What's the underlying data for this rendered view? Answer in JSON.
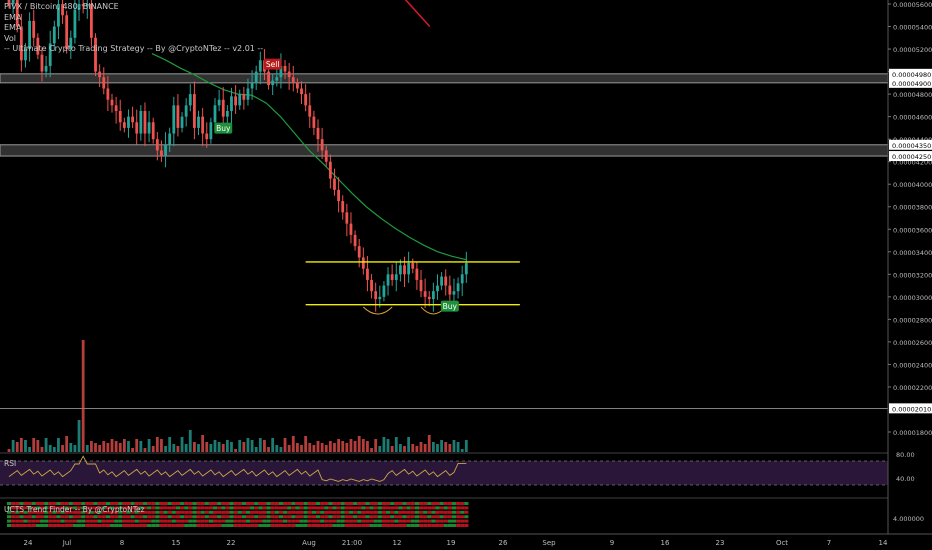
{
  "legend": {
    "symbol": "PIVX / Bitcoin, 480, BINANCE",
    "line2": "EMA",
    "line3": "EMA",
    "line4": "Vol",
    "line5": "-- Ultimate Crypto Trading Strategy -- By @CryptoNTez -- v2.01 --"
  },
  "rsi_label": "RSI",
  "ucts_label": "UCTS Trend Finder -- By @CryptoNTez",
  "colors": {
    "up": "#26a69a",
    "down": "#ef5350",
    "ema_green": "#1e9b3c",
    "ema_red": "#d0182e",
    "level_line": "#f2f000",
    "rsi_line": "#c9a64a",
    "rsi_band": "#2a1638",
    "zone": "#3a3a3a",
    "buy_bg": "#1f8f3a",
    "sell_bg": "#b71c1c"
  },
  "chart_data": {
    "type": "candlestick",
    "x_ticks": [
      "24",
      "Jul",
      "8",
      "15",
      "22",
      "Aug",
      "21:00",
      "12",
      "19",
      "26",
      "Sep",
      "9",
      "16",
      "23",
      "Oct",
      "7",
      "14"
    ],
    "price_axis_ticks": [
      "0.00005600",
      "0.00005400",
      "0.00005200",
      "0.00005000",
      "0.00004800",
      "0.00004600",
      "0.00004400",
      "0.00004200",
      "0.00004000",
      "0.00003800",
      "0.00003600",
      "0.00003400",
      "0.00003200",
      "0.00003000",
      "0.00002800",
      "0.00002600",
      "0.00002400",
      "0.00002200",
      "0.00001800"
    ],
    "ylim": [
      1.73e-05,
      5.66e-05
    ],
    "price_labels": [
      "0.00004980",
      "0.00004900",
      "0.00004350",
      "0.00004250",
      "0.00002010"
    ],
    "zones": [
      [
        4.9e-05,
        4.98e-05
      ],
      [
        4.25e-05,
        4.35e-05
      ]
    ],
    "levels": [
      3.31e-05,
      2.93e-05
    ],
    "last_level": 2.01e-05,
    "closes": [
      5.6,
      5.66,
      5.4,
      5.1,
      5.2,
      5.45,
      5.3,
      5.15,
      5.0,
      5.05,
      5.25,
      5.4,
      5.6,
      5.5,
      5.2,
      5.3,
      5.55,
      5.6,
      5.58,
      5.6,
      5.3,
      5.0,
      4.95,
      4.85,
      4.75,
      4.7,
      4.65,
      4.55,
      4.5,
      4.6,
      4.55,
      4.45,
      4.65,
      4.45,
      4.55,
      4.4,
      4.3,
      4.25,
      4.35,
      4.45,
      4.7,
      4.5,
      4.6,
      4.7,
      4.8,
      4.5,
      4.6,
      4.45,
      4.4,
      4.55,
      4.7,
      4.75,
      4.6,
      4.65,
      4.78,
      4.7,
      4.8,
      4.75,
      4.85,
      4.9,
      5.0,
      5.1,
      5.0,
      4.88,
      4.92,
      4.95,
      5.05,
      5.0,
      4.95,
      4.9,
      4.85,
      4.8,
      4.7,
      4.6,
      4.5,
      4.4,
      4.3,
      4.2,
      4.05,
      3.95,
      3.85,
      3.75,
      3.65,
      3.55,
      3.45,
      3.35,
      3.25,
      3.15,
      3.05,
      2.98,
      3.0,
      3.1,
      3.2,
      3.15,
      3.2,
      3.28,
      3.2,
      3.3,
      3.25,
      3.15,
      3.05,
      3.0,
      2.98,
      3.05,
      3.1,
      3.18,
      3.1,
      3.02,
      3.05,
      3.12,
      3.2,
      3.3
    ],
    "ema_green": [
      [
        0.5,
        5.16
      ],
      [
        0.55,
        5.1
      ],
      [
        0.6,
        5.03
      ],
      [
        0.65,
        4.97
      ],
      [
        0.7,
        4.9
      ],
      [
        0.75,
        4.84
      ],
      [
        0.8,
        4.8
      ],
      [
        0.85,
        4.79
      ],
      [
        0.9,
        4.72
      ],
      [
        0.95,
        4.6
      ],
      [
        1.0,
        4.45
      ],
      [
        1.05,
        4.3
      ],
      [
        1.1,
        4.18
      ],
      [
        1.15,
        4.05
      ],
      [
        1.2,
        3.92
      ],
      [
        1.25,
        3.8
      ],
      [
        1.3,
        3.7
      ],
      [
        1.35,
        3.61
      ],
      [
        1.4,
        3.53
      ],
      [
        1.45,
        3.46
      ],
      [
        1.5,
        3.4
      ],
      [
        1.55,
        3.36
      ],
      [
        1.6,
        3.33
      ]
    ],
    "ema_red": [
      [
        0.0,
        5.76
      ],
      [
        1.0,
        5.3
      ]
    ],
    "rsi": {
      "axis_ticks": [
        "80.00",
        "40.00"
      ],
      "upper": 70,
      "lower": 30
    },
    "ucts_axis_ticks": [
      "4.000000"
    ],
    "signals": [
      {
        "label": "Sell",
        "i": 64
      },
      {
        "label": "Buy",
        "i": 52
      },
      {
        "label": "Buy",
        "i": 107
      }
    ]
  }
}
